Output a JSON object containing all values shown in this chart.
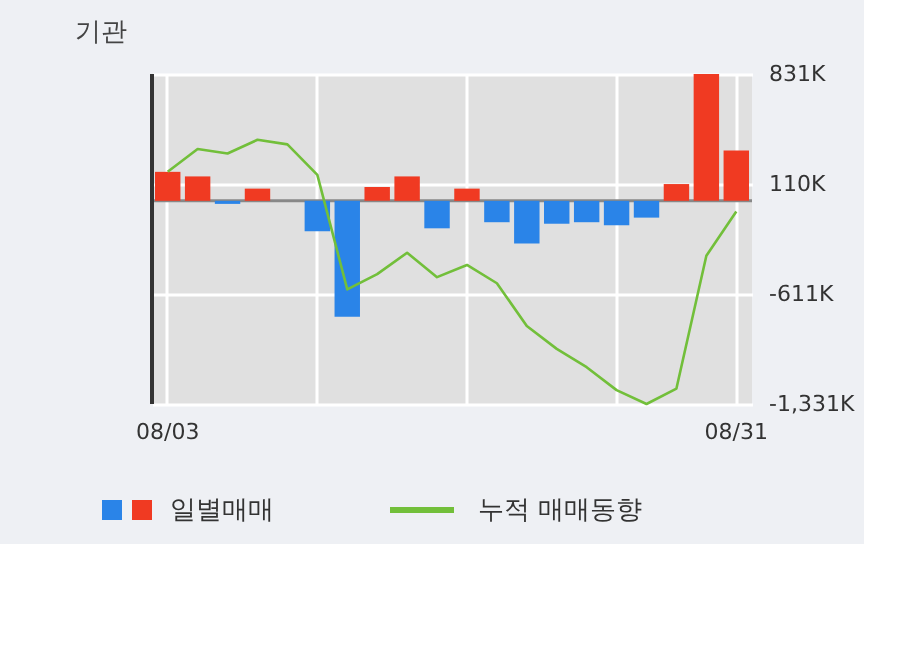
{
  "chart_data": {
    "type": "bar",
    "title": "기관",
    "categories": [
      "08/03",
      null,
      null,
      null,
      null,
      null,
      null,
      null,
      null,
      null,
      null,
      null,
      null,
      null,
      null,
      null,
      null,
      null,
      null,
      "08/31"
    ],
    "series": [
      {
        "name": "일별매매",
        "colors": [
          "#f03a22",
          "#f03a22",
          "#2a84e8",
          "#f03a22",
          "#f03a22",
          "#2a84e8",
          "#2a84e8",
          "#f03a22",
          "#f03a22",
          "#2a84e8",
          "#f03a22",
          "#2a84e8",
          "#2a84e8",
          "#2a84e8",
          "#2a84e8",
          "#2a84e8",
          "#2a84e8",
          "#f03a22",
          "#f03a22",
          "#f03a22"
        ],
        "values": [
          190,
          160,
          -20,
          80,
          0,
          -200,
          -760,
          90,
          160,
          -180,
          80,
          -140,
          -280,
          -150,
          -140,
          -160,
          -110,
          110,
          831,
          330
        ]
      },
      {
        "name": "누적 매매동향",
        "type": "line",
        "color": "#72bf3a",
        "values": [
          190,
          340,
          310,
          400,
          370,
          170,
          -580,
          -480,
          -340,
          -500,
          -420,
          -540,
          -820,
          -970,
          -1090,
          -1240,
          -1331,
          -1230,
          -360,
          -70
        ]
      }
    ],
    "ylim": [
      -1331,
      831
    ],
    "yticks": [
      {
        "value": 831,
        "label": "831K"
      },
      {
        "value": 110,
        "label": "110K"
      },
      {
        "value": -611,
        "label": "-611K"
      },
      {
        "value": -1331,
        "label": "-1,331K"
      }
    ],
    "grid": true,
    "legend": "bottom"
  }
}
